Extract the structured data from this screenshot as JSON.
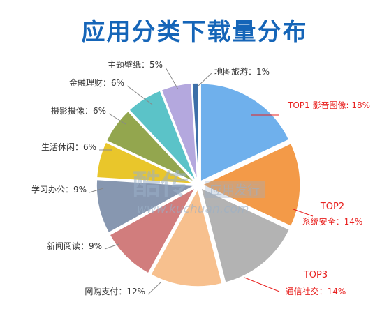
{
  "chart_data": {
    "type": "pie",
    "title": "应用分类下载量分布",
    "slices": [
      {
        "category": "影音图像",
        "value": 18,
        "color": "#6fb0ec",
        "label_prefix": "TOP1 ",
        "label": "TOP1 影音图像: 18%",
        "rank_label": "",
        "highlight": true
      },
      {
        "category": "系统安全",
        "value": 14,
        "color": "#f39a48",
        "label": "系统安全：14%",
        "rank_label": "TOP2",
        "highlight": true
      },
      {
        "category": "通信社交",
        "value": 14,
        "color": "#b3b3b3",
        "label": "通信社交：14%",
        "rank_label": "TOP3",
        "highlight": true
      },
      {
        "category": "网购支付",
        "value": 12,
        "color": "#f7c08e",
        "label": "网购支付：12%",
        "rank_label": "",
        "highlight": false
      },
      {
        "category": "新闻阅读",
        "value": 9,
        "color": "#d17d7d",
        "label": "新闻阅读：9%",
        "rank_label": "",
        "highlight": false
      },
      {
        "category": "学习办公",
        "value": 9,
        "color": "#8797b0",
        "label": "学习办公：9%",
        "rank_label": "",
        "highlight": false
      },
      {
        "category": "生活休闲",
        "value": 6,
        "color": "#e9c62b",
        "label": "生活休闲：6%",
        "rank_label": "",
        "highlight": false
      },
      {
        "category": "摄影摄像",
        "value": 6,
        "color": "#93a64e",
        "label": "摄影摄像：6%",
        "rank_label": "",
        "highlight": false
      },
      {
        "category": "金融理财",
        "value": 6,
        "color": "#5bc3c8",
        "label": "金融理财：6%",
        "rank_label": "",
        "highlight": false
      },
      {
        "category": "主题壁纸",
        "value": 5,
        "color": "#b4a8de",
        "label": "主题壁纸：5%",
        "rank_label": "",
        "highlight": false
      },
      {
        "category": "地图旅游",
        "value": 1,
        "color": "#3d6fa8",
        "label": "地图旅游：1%",
        "rank_label": "",
        "highlight": false
      }
    ],
    "legend": "none",
    "start_angle": "12 o'clock",
    "direction": "clockwise"
  },
  "watermark": {
    "brand": "酷传",
    "tagline": "应用发行",
    "url": "www.kuchuan.com"
  }
}
